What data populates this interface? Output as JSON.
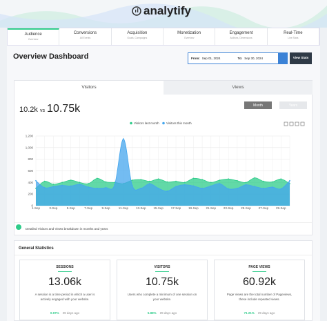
{
  "header": {
    "logo": "analytify"
  },
  "nav": [
    {
      "label": "Audience",
      "sub": "Overview"
    },
    {
      "label": "Conversions",
      "sub": "All Events"
    },
    {
      "label": "Acquisition",
      "sub": "Goals, Campaigns"
    },
    {
      "label": "Monetization",
      "sub": "Overview"
    },
    {
      "label": "Engagement",
      "sub": "Authors, Dimensions"
    },
    {
      "label": "Real-Time",
      "sub": "Live Stats"
    }
  ],
  "page": {
    "title": "Overview Dashboard",
    "from_label": "From:",
    "from": "Sep 01, 2024",
    "to_label": "To:",
    "to": "Sep 30, 2024",
    "button": "View Stats"
  },
  "chart_tabs": [
    "Visitors",
    "Views"
  ],
  "comparison": {
    "previous": "10.2k",
    "vs": "vs",
    "current": "10.75k"
  },
  "period_buttons": [
    "Month",
    "Years"
  ],
  "chart_data": {
    "type": "area",
    "legend": "top",
    "grid": true,
    "categories": [
      "1-Sep",
      null,
      "3-Sep",
      null,
      "5-Sep",
      null,
      "7-Sep",
      null,
      "9-Sep",
      null,
      "11-Sep",
      null,
      "13-Sep",
      null,
      "15-Sep",
      null,
      "17-Sep",
      null,
      "19-Sep",
      null,
      "21-Sep",
      null,
      "23-Sep",
      null,
      "25-Sep",
      null,
      "27-Sep",
      null,
      "29-Sep",
      null
    ],
    "series": [
      {
        "name": "Visitors last month",
        "color": "#2ecc8a",
        "values": [
          300,
          420,
          370,
          400,
          440,
          400,
          380,
          470,
          410,
          400,
          380,
          440,
          450,
          420,
          460,
          410,
          420,
          400,
          470,
          450,
          400,
          440,
          460,
          430,
          400,
          480,
          420,
          410,
          460,
          380
        ]
      },
      {
        "name": "Visitors this month",
        "color": "#44a6ee",
        "values": [
          430,
          310,
          330,
          350,
          340,
          370,
          320,
          300,
          310,
          360,
          1150,
          350,
          300,
          380,
          300,
          250,
          330,
          360,
          340,
          300,
          340,
          380,
          290,
          300,
          360,
          330,
          300,
          320,
          290,
          430
        ]
      }
    ],
    "ylim": [
      0,
      1200
    ],
    "yticks": [
      0,
      200,
      400,
      600,
      800,
      {
        "value": 1000,
        "label": "1,000"
      },
      {
        "value": 1200,
        "label": "1,200"
      }
    ]
  },
  "note": "Detailed Visitors and Views breakdown in months and years",
  "stats": {
    "title": "General Statistics",
    "cards": [
      {
        "label": "SESSIONS",
        "value": "13.06k",
        "description": "A session is a time period in which a user is actively engaged with your website.",
        "change": "0.97%",
        "period": "29 days ago"
      },
      {
        "label": "VISITORS",
        "value": "10.75k",
        "description": "Users who complete a minimum of one session on your website.",
        "change": "5.88%",
        "period": "29 days ago"
      },
      {
        "label": "PAGE VIEWS",
        "value": "60.92k",
        "description": "Page Views are the total number of Pageviews, these include repeated views.",
        "change": "71.21%",
        "period": "29 days ago"
      }
    ]
  }
}
